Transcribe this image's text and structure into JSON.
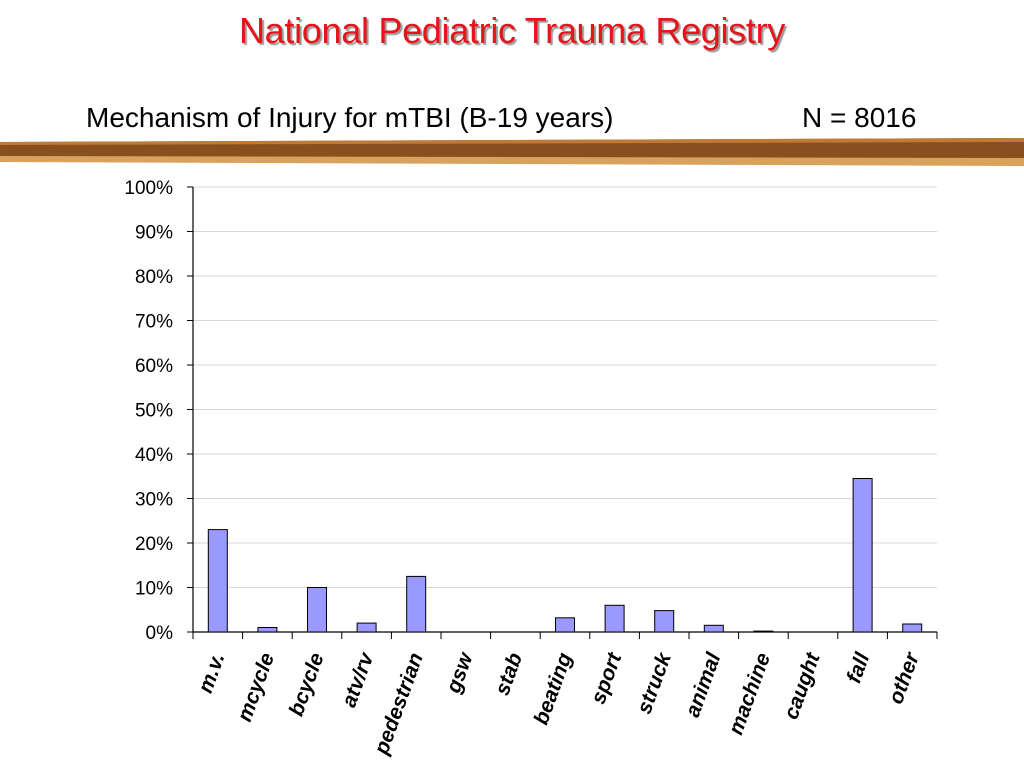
{
  "header": {
    "title": "National Pediatric Trauma Registry",
    "subtitle": "Mechanism of Injury for mTBI (B-19 years)",
    "n_label": "N = 8016"
  },
  "colors": {
    "title": "#e8141b",
    "band_dark": "#8a4f1e",
    "band_light": "#c07a38",
    "bar_fill": "#9999ff",
    "bar_stroke": "#000000"
  },
  "chart_data": {
    "type": "bar",
    "categories": [
      "m.v.",
      "mcycle",
      "bcycle",
      "atv/rv",
      "pedestrian",
      "gsw",
      "stab",
      "beating",
      "sport",
      "struck",
      "animal",
      "machine",
      "caught",
      "fall",
      "other"
    ],
    "values": [
      23,
      1,
      10,
      2,
      12.5,
      0,
      0,
      3.2,
      6,
      4.8,
      1.5,
      0.2,
      0,
      34.5,
      1.8
    ],
    "ylim": [
      0,
      100
    ],
    "yticks": [
      "0%",
      "10%",
      "20%",
      "30%",
      "40%",
      "50%",
      "60%",
      "70%",
      "80%",
      "90%",
      "100%"
    ],
    "grid": true,
    "legend": "none"
  }
}
